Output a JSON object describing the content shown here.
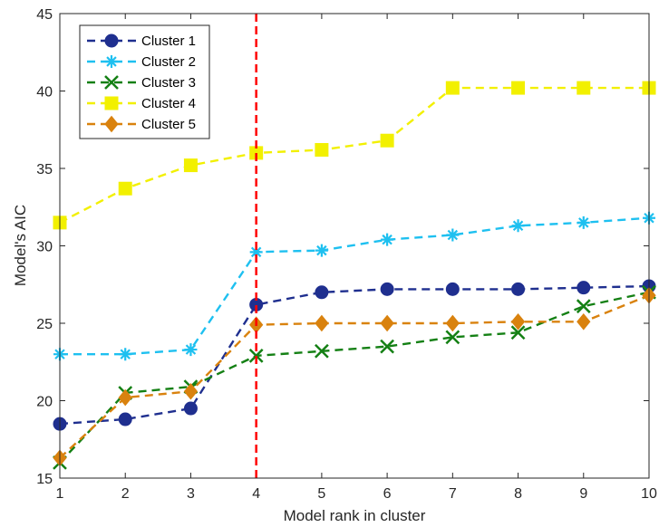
{
  "chart_data": {
    "type": "line",
    "title": "",
    "xlabel": "Model rank in cluster",
    "ylabel": "Model's AIC",
    "xlim": [
      1,
      10
    ],
    "ylim": [
      15,
      45
    ],
    "x": [
      1,
      2,
      3,
      4,
      5,
      6,
      7,
      8,
      9,
      10
    ],
    "xticks": [
      "1",
      "2",
      "3",
      "4",
      "5",
      "6",
      "7",
      "8",
      "9",
      "10"
    ],
    "yticks": [
      "15",
      "20",
      "25",
      "30",
      "35",
      "40",
      "45"
    ],
    "grid": false,
    "legend_position": "top-left",
    "vertical_line": {
      "x": 4,
      "color": "#ff0000",
      "style": "dashed"
    },
    "series": [
      {
        "name": "Cluster 1",
        "color": "#1f2f8f",
        "marker": "circle",
        "values": [
          18.5,
          18.8,
          19.5,
          26.2,
          27.0,
          27.2,
          27.2,
          27.2,
          27.3,
          27.4
        ]
      },
      {
        "name": "Cluster 2",
        "color": "#1ec0f0",
        "marker": "asterisk",
        "values": [
          23.0,
          23.0,
          23.3,
          29.6,
          29.7,
          30.4,
          30.7,
          31.3,
          31.5,
          31.8
        ]
      },
      {
        "name": "Cluster 3",
        "color": "#148014",
        "marker": "x",
        "values": [
          16.0,
          20.5,
          20.9,
          22.9,
          23.2,
          23.5,
          24.1,
          24.4,
          26.1,
          27.0
        ]
      },
      {
        "name": "Cluster 4",
        "color": "#f2f000",
        "marker": "square",
        "values": [
          31.5,
          33.7,
          35.2,
          36.0,
          36.2,
          36.8,
          40.2,
          40.2,
          40.2,
          40.2
        ]
      },
      {
        "name": "Cluster 5",
        "color": "#d9820e",
        "marker": "diamond",
        "values": [
          16.3,
          20.2,
          20.6,
          24.9,
          25.0,
          25.0,
          25.0,
          25.1,
          25.1,
          26.8
        ]
      }
    ]
  }
}
